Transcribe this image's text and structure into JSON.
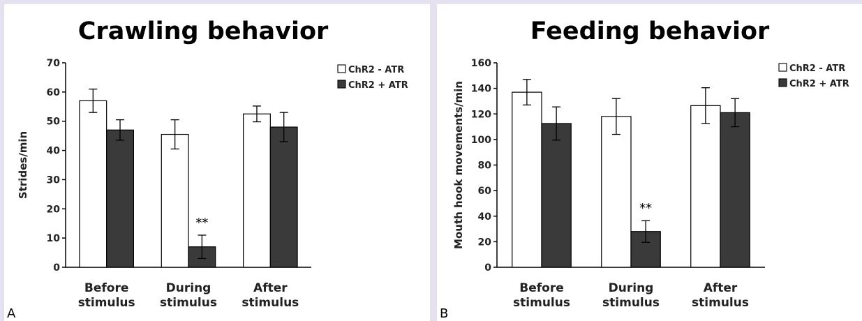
{
  "colors": {
    "series0": "#ffffff",
    "series1": "#3a3a3a",
    "stroke": "#000000"
  },
  "chart_data": [
    {
      "type": "bar",
      "panel_label": "A",
      "title": "Crawling behavior",
      "ylabel": "Strides/min",
      "xlabel": "",
      "ylim": [
        0,
        70
      ],
      "yticks": [
        0,
        10,
        20,
        30,
        40,
        50,
        60,
        70
      ],
      "categories": [
        [
          "Before",
          "stimulus"
        ],
        [
          "During",
          "stimulus"
        ],
        [
          "After",
          "stimulus"
        ]
      ],
      "series": [
        {
          "name": "ChR2 - ATR",
          "values": [
            57,
            45.5,
            52.5
          ],
          "errors": [
            4,
            5,
            2.7
          ]
        },
        {
          "name": "ChR2 + ATR",
          "values": [
            47,
            7,
            48
          ],
          "errors": [
            3.5,
            4,
            5
          ]
        }
      ],
      "annotations": [
        {
          "category": 1,
          "series": 1,
          "text": "**"
        }
      ],
      "grid": false,
      "legend_position": "top-right"
    },
    {
      "type": "bar",
      "panel_label": "B",
      "title": "Feeding behavior",
      "ylabel": "Mouth hook movements/min",
      "xlabel": "",
      "ylim": [
        0,
        160
      ],
      "yticks": [
        0,
        20,
        40,
        60,
        80,
        100,
        120,
        140,
        160
      ],
      "categories": [
        [
          "Before",
          "stimulus"
        ],
        [
          "During",
          "stimulus"
        ],
        [
          "After",
          "stimulus"
        ]
      ],
      "series": [
        {
          "name": "ChR2 - ATR",
          "values": [
            137,
            118,
            126.5
          ],
          "errors": [
            10,
            14,
            14
          ]
        },
        {
          "name": "ChR2 + ATR",
          "values": [
            112.5,
            28,
            121
          ],
          "errors": [
            13,
            8.5,
            11
          ]
        }
      ],
      "annotations": [
        {
          "category": 1,
          "series": 1,
          "text": "**"
        }
      ],
      "grid": false,
      "legend_position": "top-right"
    }
  ]
}
